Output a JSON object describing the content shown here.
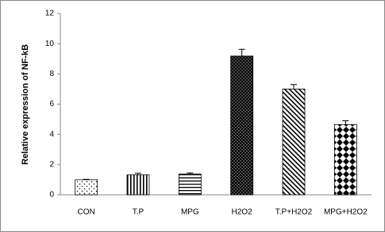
{
  "chart_data": {
    "type": "bar",
    "y_label": "Relative expression of NF-kB",
    "categories": [
      "CON",
      "T.P",
      "MPG",
      "H2O2",
      "T.P+H2O2",
      "MPG+H2O2"
    ],
    "values": [
      1.0,
      1.32,
      1.37,
      9.18,
      7.0,
      4.65
    ],
    "errors": [
      0.03,
      0.1,
      0.08,
      0.45,
      0.3,
      0.25
    ],
    "ylim": [
      0,
      12
    ],
    "yticks": [
      0,
      2,
      4,
      6,
      8,
      10,
      12
    ],
    "grid": false
  }
}
